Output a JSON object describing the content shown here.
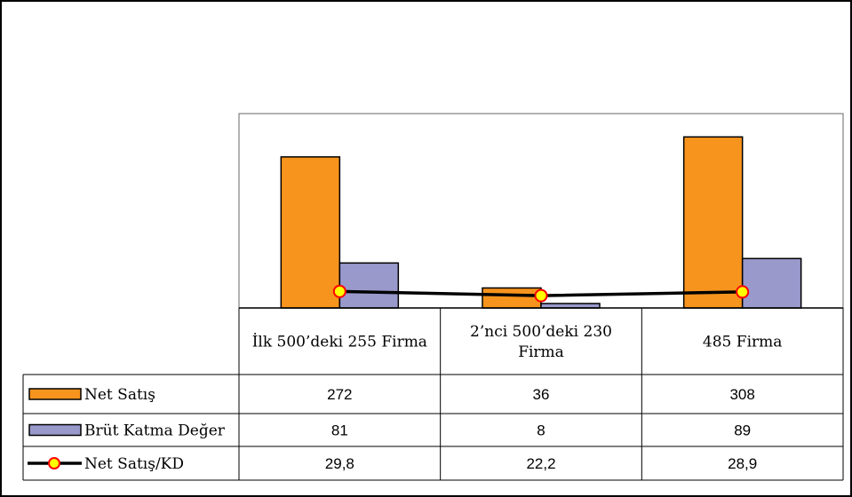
{
  "chart_data": {
    "type": "bar",
    "categories": [
      "İlk 500’deki 255 Firma",
      "2’nci 500’deki 230 Firma",
      "485 Firma"
    ],
    "category_lines": [
      [
        "İlk 500’deki 255 Firma"
      ],
      [
        "2’nci 500’deki 230",
        "Firma"
      ],
      [
        "485 Firma"
      ]
    ],
    "series": [
      {
        "name": "Net Satış",
        "kind": "bar",
        "color": "#f7941d",
        "values": [
          272,
          36,
          308
        ],
        "labels": [
          "272",
          "36",
          "308"
        ]
      },
      {
        "name": "Brüt Katma Değer",
        "kind": "bar",
        "color": "#9999cc",
        "values": [
          81,
          8,
          89
        ],
        "labels": [
          "81",
          "8",
          "89"
        ]
      },
      {
        "name": "Net Satış/KD",
        "kind": "line",
        "color": "#000000",
        "marker_fill": "#ffff00",
        "marker_edge": "#ff0000",
        "values": [
          29.8,
          22.2,
          28.9
        ],
        "labels": [
          "29,8",
          "22,2",
          "28,9"
        ]
      }
    ],
    "ylim": [
      0,
      350
    ],
    "data_table": true,
    "grid": false
  }
}
